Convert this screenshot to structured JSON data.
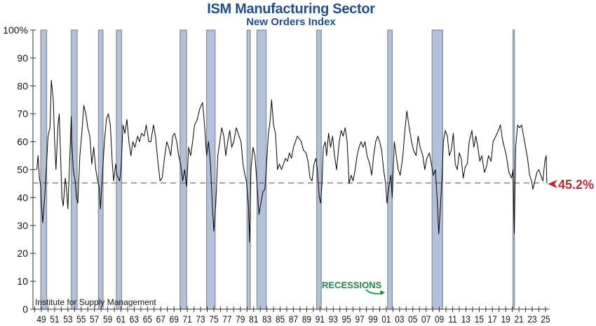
{
  "chart_data": {
    "type": "line",
    "title": "ISM Manufacturing Sector",
    "subtitle": "New Orders Index",
    "xlabel": "",
    "ylabel": "",
    "xlim": [
      1948,
      2025.5
    ],
    "ylim": [
      0,
      100
    ],
    "grid": false,
    "y_tick_labels": [
      "0",
      "10",
      "20",
      "30",
      "40",
      "50",
      "60",
      "70",
      "80",
      "90",
      "100%"
    ],
    "y_tick_values": [
      0,
      10,
      20,
      30,
      40,
      50,
      60,
      70,
      80,
      90,
      100
    ],
    "x_tick_labels": [
      "49",
      "51",
      "53",
      "55",
      "57",
      "59",
      "61",
      "63",
      "65",
      "67",
      "69",
      "71",
      "73",
      "75",
      "77",
      "79",
      "81",
      "83",
      "85",
      "87",
      "89",
      "91",
      "93",
      "95",
      "97",
      "99",
      "01",
      "03",
      "05",
      "07",
      "09",
      "11",
      "13",
      "15",
      "17",
      "19",
      "21",
      "23",
      "25"
    ],
    "x_tick_years": [
      1949,
      1951,
      1953,
      1955,
      1957,
      1959,
      1961,
      1963,
      1965,
      1967,
      1969,
      1971,
      1973,
      1975,
      1977,
      1979,
      1981,
      1983,
      1985,
      1987,
      1989,
      1991,
      1993,
      1995,
      1997,
      1999,
      2001,
      2003,
      2005,
      2007,
      2009,
      2011,
      2013,
      2015,
      2017,
      2019,
      2021,
      2023,
      2025
    ],
    "series": [
      {
        "color": "#000000",
        "points": [
          [
            1948.3,
            50
          ],
          [
            1948.5,
            55
          ],
          [
            1948.7,
            47
          ],
          [
            1948.9,
            44
          ],
          [
            1949.0,
            38
          ],
          [
            1949.2,
            31
          ],
          [
            1949.5,
            40
          ],
          [
            1949.8,
            53
          ],
          [
            1950.0,
            62
          ],
          [
            1950.3,
            65
          ],
          [
            1950.5,
            82
          ],
          [
            1950.8,
            75
          ],
          [
            1951.0,
            60
          ],
          [
            1951.2,
            50
          ],
          [
            1951.5,
            66
          ],
          [
            1951.7,
            70
          ],
          [
            1951.9,
            55
          ],
          [
            1952.1,
            40
          ],
          [
            1952.3,
            37
          ],
          [
            1952.6,
            47
          ],
          [
            1952.8,
            43
          ],
          [
            1953.0,
            36
          ],
          [
            1953.3,
            55
          ],
          [
            1953.5,
            69
          ],
          [
            1953.6,
            60
          ],
          [
            1953.8,
            50
          ],
          [
            1954.1,
            46
          ],
          [
            1954.3,
            40
          ],
          [
            1954.5,
            38
          ],
          [
            1954.8,
            55
          ],
          [
            1955.1,
            63
          ],
          [
            1955.4,
            73
          ],
          [
            1955.7,
            70
          ],
          [
            1956.0,
            65
          ],
          [
            1956.3,
            62
          ],
          [
            1956.6,
            52
          ],
          [
            1956.9,
            58
          ],
          [
            1957.2,
            50
          ],
          [
            1957.5,
            46
          ],
          [
            1957.7,
            44
          ],
          [
            1957.9,
            36
          ],
          [
            1958.2,
            48
          ],
          [
            1958.5,
            60
          ],
          [
            1958.8,
            68
          ],
          [
            1959.1,
            70
          ],
          [
            1959.4,
            66
          ],
          [
            1959.7,
            52
          ],
          [
            1959.9,
            46
          ],
          [
            1960.2,
            52
          ],
          [
            1960.4,
            48
          ],
          [
            1960.8,
            46
          ],
          [
            1961.0,
            50
          ],
          [
            1961.3,
            66
          ],
          [
            1961.6,
            63
          ],
          [
            1961.9,
            68
          ],
          [
            1962.2,
            60
          ],
          [
            1962.5,
            55
          ],
          [
            1962.8,
            60
          ],
          [
            1963.1,
            58
          ],
          [
            1963.5,
            62
          ],
          [
            1963.8,
            60
          ],
          [
            1964.1,
            63
          ],
          [
            1964.5,
            62
          ],
          [
            1964.8,
            66
          ],
          [
            1965.2,
            60
          ],
          [
            1965.5,
            60
          ],
          [
            1965.9,
            66
          ],
          [
            1966.2,
            62
          ],
          [
            1966.6,
            52
          ],
          [
            1966.9,
            46
          ],
          [
            1967.2,
            47
          ],
          [
            1967.6,
            55
          ],
          [
            1967.9,
            60
          ],
          [
            1968.2,
            58
          ],
          [
            1968.5,
            55
          ],
          [
            1968.8,
            62
          ],
          [
            1969.1,
            63
          ],
          [
            1969.4,
            60
          ],
          [
            1969.7,
            55
          ],
          [
            1970.0,
            52
          ],
          [
            1970.3,
            46
          ],
          [
            1970.6,
            50
          ],
          [
            1970.9,
            44
          ],
          [
            1971.2,
            58
          ],
          [
            1971.5,
            55
          ],
          [
            1971.8,
            60
          ],
          [
            1972.1,
            66
          ],
          [
            1972.5,
            68
          ],
          [
            1972.9,
            72
          ],
          [
            1973.3,
            74
          ],
          [
            1973.6,
            66
          ],
          [
            1973.9,
            55
          ],
          [
            1974.2,
            60
          ],
          [
            1974.5,
            52
          ],
          [
            1974.8,
            36
          ],
          [
            1975.0,
            28
          ],
          [
            1975.3,
            38
          ],
          [
            1975.6,
            55
          ],
          [
            1975.9,
            60
          ],
          [
            1976.2,
            65
          ],
          [
            1976.5,
            62
          ],
          [
            1976.8,
            55
          ],
          [
            1977.1,
            60
          ],
          [
            1977.4,
            64
          ],
          [
            1977.7,
            58
          ],
          [
            1978.0,
            60
          ],
          [
            1978.4,
            65
          ],
          [
            1978.8,
            62
          ],
          [
            1979.1,
            60
          ],
          [
            1979.4,
            52
          ],
          [
            1979.7,
            48
          ],
          [
            1979.9,
            46
          ],
          [
            1980.2,
            38
          ],
          [
            1980.4,
            24
          ],
          [
            1980.6,
            50
          ],
          [
            1980.9,
            58
          ],
          [
            1981.2,
            55
          ],
          [
            1981.5,
            45
          ],
          [
            1981.8,
            34
          ],
          [
            1982.1,
            38
          ],
          [
            1982.4,
            42
          ],
          [
            1982.7,
            43
          ],
          [
            1982.9,
            50
          ],
          [
            1983.2,
            62
          ],
          [
            1983.5,
            68
          ],
          [
            1983.7,
            75
          ],
          [
            1984.0,
            66
          ],
          [
            1984.3,
            63
          ],
          [
            1984.6,
            50
          ],
          [
            1984.9,
            52
          ],
          [
            1985.2,
            50
          ],
          [
            1985.5,
            52
          ],
          [
            1985.8,
            54
          ],
          [
            1986.1,
            53
          ],
          [
            1986.4,
            56
          ],
          [
            1986.7,
            54
          ],
          [
            1987.0,
            58
          ],
          [
            1987.3,
            60
          ],
          [
            1987.6,
            62
          ],
          [
            1987.9,
            61
          ],
          [
            1988.2,
            60
          ],
          [
            1988.5,
            57
          ],
          [
            1988.9,
            56
          ],
          [
            1989.2,
            53
          ],
          [
            1989.5,
            47
          ],
          [
            1989.8,
            46
          ],
          [
            1990.1,
            52
          ],
          [
            1990.4,
            54
          ],
          [
            1990.6,
            50
          ],
          [
            1990.9,
            40
          ],
          [
            1991.1,
            38
          ],
          [
            1991.3,
            45
          ],
          [
            1991.5,
            58
          ],
          [
            1991.8,
            60
          ],
          [
            1992.0,
            55
          ],
          [
            1992.3,
            63
          ],
          [
            1992.6,
            58
          ],
          [
            1992.9,
            62
          ],
          [
            1993.2,
            55
          ],
          [
            1993.5,
            50
          ],
          [
            1993.9,
            60
          ],
          [
            1994.2,
            64
          ],
          [
            1994.5,
            62
          ],
          [
            1994.8,
            65
          ],
          [
            1995.1,
            60
          ],
          [
            1995.4,
            45
          ],
          [
            1995.7,
            48
          ],
          [
            1996.0,
            46
          ],
          [
            1996.3,
            50
          ],
          [
            1996.6,
            55
          ],
          [
            1996.9,
            58
          ],
          [
            1997.2,
            60
          ],
          [
            1997.5,
            58
          ],
          [
            1997.8,
            60
          ],
          [
            1998.1,
            55
          ],
          [
            1998.5,
            52
          ],
          [
            1998.8,
            48
          ],
          [
            1999.1,
            55
          ],
          [
            1999.4,
            60
          ],
          [
            1999.7,
            62
          ],
          [
            2000.0,
            60
          ],
          [
            2000.3,
            57
          ],
          [
            2000.6,
            50
          ],
          [
            2000.9,
            45
          ],
          [
            2001.1,
            38
          ],
          [
            2001.4,
            44
          ],
          [
            2001.7,
            48
          ],
          [
            2001.9,
            40
          ],
          [
            2002.2,
            60
          ],
          [
            2002.5,
            55
          ],
          [
            2002.8,
            50
          ],
          [
            2003.1,
            48
          ],
          [
            2003.5,
            55
          ],
          [
            2003.8,
            64
          ],
          [
            2004.1,
            71
          ],
          [
            2004.4,
            66
          ],
          [
            2004.8,
            60
          ],
          [
            2005.1,
            57
          ],
          [
            2005.5,
            55
          ],
          [
            2005.8,
            62
          ],
          [
            2006.1,
            58
          ],
          [
            2006.5,
            55
          ],
          [
            2006.8,
            50
          ],
          [
            2007.1,
            54
          ],
          [
            2007.5,
            56
          ],
          [
            2007.8,
            52
          ],
          [
            2008.1,
            48
          ],
          [
            2008.4,
            50
          ],
          [
            2008.7,
            38
          ],
          [
            2008.9,
            27
          ],
          [
            2009.1,
            34
          ],
          [
            2009.4,
            47
          ],
          [
            2009.6,
            60
          ],
          [
            2009.9,
            64
          ],
          [
            2010.2,
            62
          ],
          [
            2010.5,
            55
          ],
          [
            2010.8,
            57
          ],
          [
            2011.1,
            63
          ],
          [
            2011.4,
            52
          ],
          [
            2011.7,
            50
          ],
          [
            2012.0,
            56
          ],
          [
            2012.3,
            54
          ],
          [
            2012.6,
            47
          ],
          [
            2012.9,
            51
          ],
          [
            2013.2,
            52
          ],
          [
            2013.5,
            60
          ],
          [
            2013.9,
            64
          ],
          [
            2014.2,
            58
          ],
          [
            2014.5,
            62
          ],
          [
            2014.8,
            58
          ],
          [
            2015.1,
            53
          ],
          [
            2015.4,
            55
          ],
          [
            2015.8,
            49
          ],
          [
            2016.1,
            51
          ],
          [
            2016.4,
            55
          ],
          [
            2016.8,
            53
          ],
          [
            2017.1,
            60
          ],
          [
            2017.5,
            62
          ],
          [
            2017.9,
            64
          ],
          [
            2018.2,
            66
          ],
          [
            2018.5,
            61
          ],
          [
            2018.8,
            58
          ],
          [
            2019.1,
            55
          ],
          [
            2019.5,
            49
          ],
          [
            2019.9,
            47
          ],
          [
            2020.1,
            50
          ],
          [
            2020.3,
            27
          ],
          [
            2020.5,
            58
          ],
          [
            2020.8,
            66
          ],
          [
            2021.1,
            65
          ],
          [
            2021.4,
            66
          ],
          [
            2021.7,
            62
          ],
          [
            2022.0,
            58
          ],
          [
            2022.3,
            54
          ],
          [
            2022.6,
            48
          ],
          [
            2022.9,
            46
          ],
          [
            2023.1,
            43
          ],
          [
            2023.4,
            46
          ],
          [
            2023.7,
            49
          ],
          [
            2024.0,
            50
          ],
          [
            2024.3,
            48
          ],
          [
            2024.6,
            46
          ],
          [
            2024.9,
            53
          ],
          [
            2025.1,
            55
          ],
          [
            2025.2,
            45.2
          ]
        ]
      }
    ],
    "reference_line": {
      "value": 45.2,
      "label": "45.2%",
      "color": "#c0262d",
      "style": "dashed"
    },
    "recessions": [
      [
        1948.9,
        1949.8
      ],
      [
        1953.5,
        1954.4
      ],
      [
        1957.6,
        1958.3
      ],
      [
        1960.3,
        1961.1
      ],
      [
        1969.9,
        1970.9
      ],
      [
        1973.9,
        1975.2
      ],
      [
        1980.0,
        1980.5
      ],
      [
        1981.5,
        1982.9
      ],
      [
        1990.5,
        1991.2
      ],
      [
        2001.2,
        2001.9
      ],
      [
        2007.9,
        2009.5
      ],
      [
        2020.1,
        2020.3
      ]
    ],
    "recession_color": "#b4c0d8",
    "annotation": {
      "text": "RECESSIONS",
      "color": "#1a8a4a"
    },
    "source": "Institute for Supply Management",
    "title_color": "#1f4e8c"
  }
}
